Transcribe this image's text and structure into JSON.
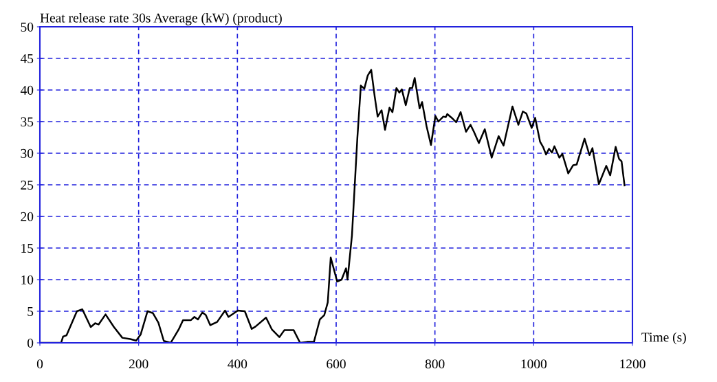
{
  "chart_data": {
    "type": "line",
    "title": "Heat release rate 30s Average (kW) (product)",
    "xlabel": "Time (s)",
    "xlim": [
      0,
      1200
    ],
    "xticks": [
      0,
      200,
      400,
      600,
      800,
      1000,
      1200
    ],
    "ylim": [
      0,
      50
    ],
    "yticks": [
      0,
      5,
      10,
      15,
      20,
      25,
      30,
      35,
      40,
      45,
      50
    ],
    "grid": true,
    "line_style": "solid",
    "marker": "none",
    "series": [
      {
        "color": "#000000",
        "x": [
          0,
          43,
          47,
          54,
          75,
          86,
          103,
          112,
          119,
          133,
          150,
          167,
          183,
          195,
          204,
          218,
          229,
          240,
          251,
          265,
          281,
          290,
          306,
          313,
          320,
          329,
          336,
          345,
          359,
          375,
          382,
          401,
          415,
          429,
          437,
          458,
          470,
          485,
          495,
          514,
          527,
          541,
          555,
          567,
          576,
          583,
          589,
          602,
          611,
          620,
          623,
          632,
          643,
          650,
          657,
          664,
          671,
          678,
          684,
          692,
          699,
          708,
          714,
          722,
          728,
          733,
          741,
          749,
          754,
          759,
          769,
          774,
          783,
          792,
          801,
          807,
          817,
          822,
          825,
          834,
          843,
          852,
          863,
          872,
          879,
          889,
          901,
          915,
          929,
          939,
          957,
          969,
          978,
          985,
          996,
          1003,
          1013,
          1019,
          1025,
          1031,
          1037,
          1042,
          1052,
          1058,
          1070,
          1080,
          1087,
          1103,
          1113,
          1119,
          1132,
          1147,
          1155,
          1166,
          1173,
          1178,
          1184
        ],
        "values": [
          0,
          0,
          1.0,
          1.2,
          5.0,
          5.3,
          2.5,
          3.1,
          2.9,
          4.5,
          2.5,
          0.8,
          0.6,
          0.35,
          1.3,
          5.0,
          4.7,
          3.2,
          0.3,
          0,
          2.1,
          3.6,
          3.6,
          4.1,
          3.7,
          4.8,
          4.4,
          2.8,
          3.3,
          5.1,
          4.1,
          5.1,
          5.0,
          2.2,
          2.6,
          4.0,
          2.1,
          0.9,
          2.0,
          2.0,
          0,
          0.15,
          0.15,
          3.7,
          4.4,
          6.4,
          13.5,
          9.7,
          10.0,
          11.8,
          10.0,
          17,
          32.5,
          40.7,
          40.2,
          42.3,
          43.2,
          39,
          35.8,
          36.8,
          33.7,
          37.2,
          36.5,
          40.3,
          39.6,
          40.1,
          37.6,
          40.3,
          40.3,
          41.9,
          37.1,
          38.1,
          34.3,
          31.3,
          35.9,
          35.0,
          35.8,
          35.7,
          36.2,
          35.6,
          34.9,
          36.5,
          33.4,
          34.5,
          33.4,
          31.6,
          33.8,
          29.3,
          32.7,
          31.2,
          37.4,
          34.5,
          36.6,
          36.3,
          34.0,
          35.6,
          31.8,
          31.0,
          29.8,
          30.7,
          30.1,
          31.1,
          29.3,
          29.9,
          26.8,
          28.1,
          28.2,
          32.3,
          29.7,
          30.8,
          25.1,
          28.0,
          26.5,
          31.0,
          29.1,
          28.7,
          24.9
        ]
      }
    ]
  }
}
